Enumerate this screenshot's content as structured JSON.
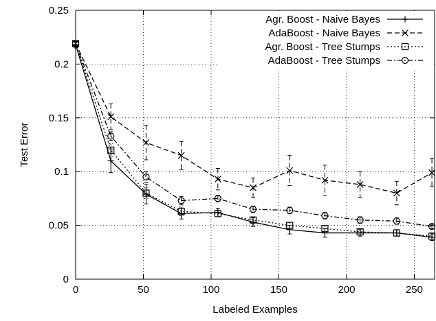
{
  "chart_data": {
    "type": "line",
    "title": "",
    "xlabel": "Labeled Examples",
    "ylabel": "Test Error",
    "xlim": [
      0,
      265
    ],
    "ylim": [
      0,
      0.25
    ],
    "x_ticks": [
      0,
      50,
      100,
      150,
      200,
      250
    ],
    "y_ticks": [
      0,
      0.05,
      0.1,
      0.15,
      0.2,
      0.25
    ],
    "x_tick_labels": [
      "0",
      "50",
      "100",
      "150",
      "200",
      "250"
    ],
    "y_tick_labels": [
      "0",
      "0.05",
      "0.1",
      "0.15",
      "0.2",
      "0.25"
    ],
    "grid": true,
    "legend_position": "top-right",
    "x": [
      0,
      26,
      52,
      78,
      105,
      131,
      158,
      184,
      210,
      237,
      263
    ],
    "series": [
      {
        "name": "Agr. Boost - Naive Bayes",
        "marker": "plus",
        "dash": "solid",
        "values": [
          0.218,
          0.11,
          0.079,
          0.061,
          0.062,
          0.053,
          0.046,
          0.043,
          0.043,
          0.043,
          0.039
        ],
        "errors": [
          0.003,
          0.011,
          0.009,
          0.005,
          0.004,
          0.004,
          0.004,
          0.004,
          0.003,
          0.003,
          0.003
        ]
      },
      {
        "name": "AdaBoost - Naive Bayes",
        "marker": "cross",
        "dash": "dashed",
        "values": [
          0.219,
          0.151,
          0.127,
          0.115,
          0.093,
          0.085,
          0.101,
          0.092,
          0.088,
          0.08,
          0.099
        ],
        "errors": [
          0.002,
          0.012,
          0.016,
          0.013,
          0.01,
          0.009,
          0.014,
          0.014,
          0.012,
          0.011,
          0.013
        ]
      },
      {
        "name": "Agr. Boost - Tree Stumps",
        "marker": "square",
        "dash": "dotted",
        "values": [
          0.219,
          0.12,
          0.08,
          0.063,
          0.061,
          0.055,
          0.05,
          0.047,
          0.044,
          0.043,
          0.04
        ],
        "errors": [
          0.002,
          0.006,
          0.005,
          0.004,
          0.003,
          0.003,
          0.003,
          0.003,
          0.003,
          0.003,
          0.003
        ]
      },
      {
        "name": "AdaBoost - Tree Stumps",
        "marker": "circle",
        "dash": "dashdot",
        "values": [
          0.219,
          0.133,
          0.095,
          0.073,
          0.075,
          0.065,
          0.064,
          0.059,
          0.055,
          0.054,
          0.049
        ],
        "errors": [
          0.002,
          0.004,
          0.005,
          0.004,
          0.003,
          0.003,
          0.003,
          0.003,
          0.003,
          0.003,
          0.002
        ]
      }
    ]
  }
}
